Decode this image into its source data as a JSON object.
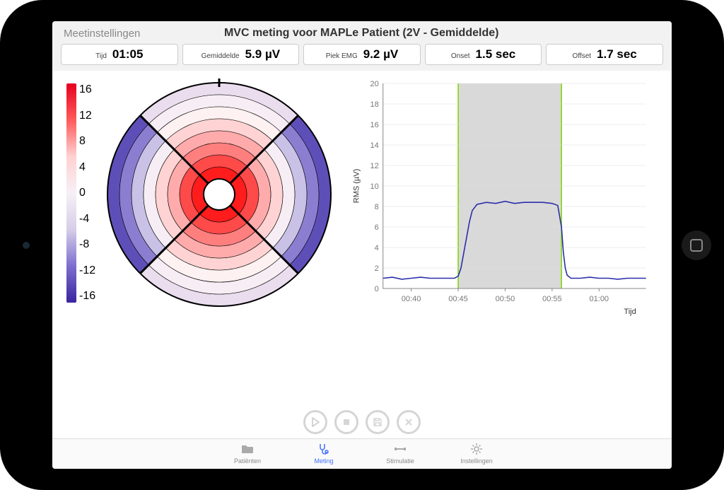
{
  "header": {
    "back_label": "Meetinstellingen",
    "title": "MVC meting voor MAPLe Patient (2V - Gemiddelde)"
  },
  "metrics": {
    "time": {
      "label": "Tijd",
      "value": "01:05"
    },
    "avg": {
      "label": "Gemiddelde",
      "value": "5.9 µV"
    },
    "peak": {
      "label": "Piek EMG",
      "value": "9.2 µV"
    },
    "onset": {
      "label": "Onset",
      "value": "1.5 sec"
    },
    "offset": {
      "label": "Offset",
      "value": "1.7 sec"
    }
  },
  "colorbar": {
    "ticks": [
      "16",
      "12",
      "8",
      "4",
      "0",
      "-4",
      "-8",
      "-12",
      "-16"
    ],
    "gradient_stops": [
      "#e5001f",
      "#ff5a5a",
      "#ffd1d1",
      "#f6f0f6",
      "#d6cee8",
      "#7d6ecf",
      "#3a24a0"
    ]
  },
  "target_chart": {
    "type": "infographic",
    "background_color": "#ffffff",
    "outline_color": "#000000",
    "outline_width": 2,
    "rings_count": 8,
    "top_bottom_ring_colors": [
      "#eaddee",
      "#f6eef4",
      "#fef1f1",
      "#ffd3d3",
      "#ffabab",
      "#ff7f7f",
      "#ff4a4a",
      "#ff1c1c"
    ],
    "left_right_ring_colors": [
      "#5e4fb8",
      "#8b7ed1",
      "#c9c1e6",
      "#f6eef4",
      "#ffd3d3",
      "#ffabab",
      "#ff4a4a",
      "#ff1c1c"
    ],
    "center_hole_color": "#ffffff"
  },
  "line_chart": {
    "type": "line",
    "ylabel": "RMS (µV)",
    "xlabel": "Tijd",
    "label_fontsize": 11,
    "ylim": [
      0,
      20
    ],
    "ytick_step": 2,
    "yticks": [
      0,
      2,
      4,
      6,
      8,
      10,
      12,
      14,
      16,
      18,
      20
    ],
    "xticks": [
      "00:40",
      "00:45",
      "00:50",
      "00:55",
      "01:00"
    ],
    "xrange_sec": [
      37,
      65
    ],
    "band_start_sec": 45,
    "band_end_sec": 56,
    "band_color": "#d9d9d9",
    "band_edge_color": "#7fd400",
    "line_color": "#2a2fa8",
    "line_width": 1.6,
    "grid_color": "#dddddd",
    "axis_color": "#888888",
    "tick_font_color": "#777777",
    "background_color": "#ffffff",
    "series": [
      [
        37,
        1.0
      ],
      [
        38,
        1.1
      ],
      [
        39,
        0.9
      ],
      [
        40,
        1.0
      ],
      [
        41,
        1.1
      ],
      [
        42,
        1.0
      ],
      [
        43,
        1.0
      ],
      [
        44,
        1.0
      ],
      [
        44.6,
        1.0
      ],
      [
        45,
        1.2
      ],
      [
        45.3,
        2.0
      ],
      [
        45.6,
        3.5
      ],
      [
        45.9,
        5.0
      ],
      [
        46.2,
        6.5
      ],
      [
        46.5,
        7.6
      ],
      [
        47,
        8.2
      ],
      [
        48,
        8.4
      ],
      [
        49,
        8.3
      ],
      [
        50,
        8.5
      ],
      [
        51,
        8.3
      ],
      [
        52,
        8.4
      ],
      [
        53,
        8.4
      ],
      [
        54,
        8.4
      ],
      [
        55,
        8.3
      ],
      [
        55.6,
        8.1
      ],
      [
        56,
        6.0
      ],
      [
        56.2,
        3.5
      ],
      [
        56.4,
        2.0
      ],
      [
        56.6,
        1.3
      ],
      [
        57,
        1.0
      ],
      [
        58,
        1.0
      ],
      [
        59,
        1.1
      ],
      [
        60,
        1.0
      ],
      [
        61,
        1.0
      ],
      [
        62,
        0.9
      ],
      [
        63,
        1.0
      ],
      [
        64,
        1.0
      ],
      [
        65,
        1.0
      ]
    ]
  },
  "controls": {
    "items": [
      "play-icon",
      "stop-icon",
      "save-icon",
      "close-icon"
    ]
  },
  "tabbar": {
    "tabs": [
      {
        "icon": "folder-icon",
        "label": "Patiënten",
        "active": false
      },
      {
        "icon": "stetho-icon",
        "label": "Meting",
        "active": true
      },
      {
        "icon": "dumbbell-icon",
        "label": "Stimulatie",
        "active": false
      },
      {
        "icon": "gear-icon",
        "label": "Instellingen",
        "active": false
      }
    ]
  }
}
